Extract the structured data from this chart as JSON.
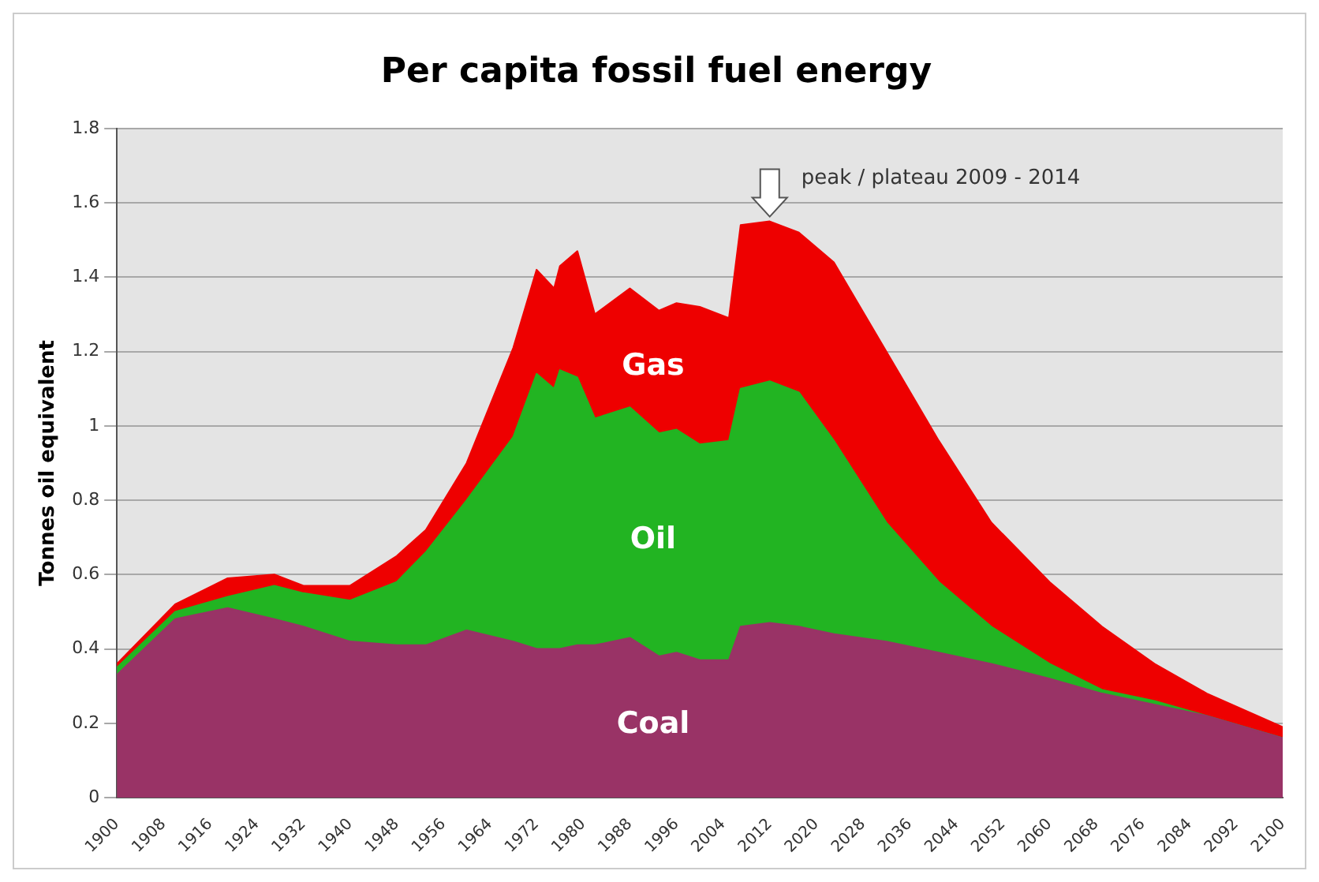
{
  "chart_data": {
    "type": "area",
    "title": "Per capita fossil fuel energy",
    "ylabel": "Tonnes oil equivalent",
    "stacked": true,
    "grid": "y",
    "legend": false,
    "x": [
      1900,
      1910,
      1919,
      1927,
      1932,
      1940,
      1948,
      1953,
      1960,
      1968,
      1972,
      1975,
      1976,
      1979,
      1982,
      1988,
      1993,
      1996,
      2000,
      2005,
      2007,
      2012,
      2017,
      2023,
      2032,
      2041,
      2050,
      2060,
      2069,
      2078,
      2087,
      2100
    ],
    "xlim": [
      1900,
      2100
    ],
    "xticks": [
      1900,
      1908,
      1916,
      1924,
      1932,
      1940,
      1948,
      1956,
      1964,
      1972,
      1980,
      1988,
      1996,
      2004,
      2012,
      2020,
      2028,
      2036,
      2044,
      2052,
      2060,
      2068,
      2076,
      2084,
      2092,
      2100
    ],
    "ylim": [
      0,
      1.8
    ],
    "yticks": [
      0,
      0.2,
      0.4,
      0.6,
      0.8,
      1,
      1.2,
      1.4,
      1.6,
      1.8
    ],
    "series": [
      {
        "name": "Coal",
        "color": "#993366",
        "values": [
          0.33,
          0.48,
          0.51,
          0.48,
          0.46,
          0.42,
          0.41,
          0.41,
          0.45,
          0.42,
          0.4,
          0.4,
          0.4,
          0.41,
          0.41,
          0.43,
          0.38,
          0.39,
          0.37,
          0.37,
          0.46,
          0.47,
          0.46,
          0.44,
          0.42,
          0.39,
          0.36,
          0.32,
          0.28,
          0.25,
          0.22,
          0.16
        ]
      },
      {
        "name": "Oil",
        "color": "#22b422",
        "values": [
          0.02,
          0.02,
          0.03,
          0.09,
          0.09,
          0.11,
          0.17,
          0.25,
          0.35,
          0.55,
          0.74,
          0.7,
          0.75,
          0.72,
          0.61,
          0.62,
          0.6,
          0.6,
          0.58,
          0.59,
          0.64,
          0.65,
          0.63,
          0.52,
          0.32,
          0.19,
          0.1,
          0.04,
          0.01,
          0.01,
          0,
          0
        ]
      },
      {
        "name": "Gas",
        "color": "#ee0000",
        "values": [
          0.01,
          0.02,
          0.05,
          0.03,
          0.02,
          0.04,
          0.07,
          0.06,
          0.1,
          0.24,
          0.28,
          0.27,
          0.28,
          0.34,
          0.28,
          0.32,
          0.33,
          0.34,
          0.37,
          0.33,
          0.44,
          0.43,
          0.43,
          0.48,
          0.46,
          0.38,
          0.28,
          0.22,
          0.17,
          0.1,
          0.06,
          0.03
        ]
      }
    ],
    "annotations": [
      {
        "text": "peak / plateau 2009 - 2014",
        "x": 2012,
        "y": 1.55
      }
    ]
  }
}
